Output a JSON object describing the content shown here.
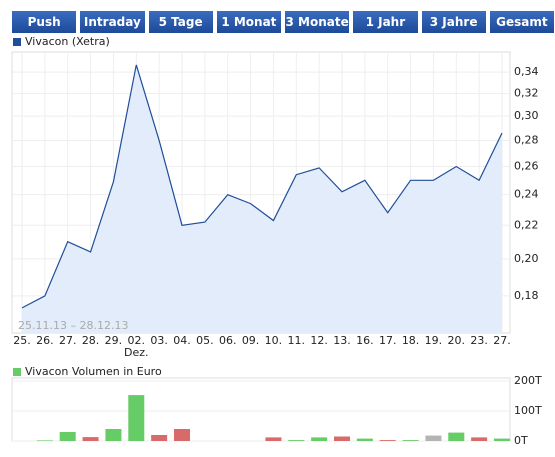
{
  "tabs": [
    "Push",
    "Intraday",
    "5 Tage",
    "1 Monat",
    "3 Monate",
    "1 Jahr",
    "3 Jahre",
    "Gesamt"
  ],
  "chart_data": [
    {
      "type": "area",
      "categories": [
        "25.",
        "26.",
        "27.",
        "28.",
        "29.",
        "02.",
        "03.",
        "04.",
        "05.",
        "06.",
        "09.",
        "10.",
        "11.",
        "12.",
        "13.",
        "16.",
        "17.",
        "18.",
        "19.",
        "20.",
        "23.",
        "27."
      ],
      "month_label": {
        "text": "Dez.",
        "at": "02."
      },
      "annotation": "25.11.13 – 28.12.13",
      "series": [
        {
          "name": "Vivacon (Xetra)",
          "color": "#1f4e9a",
          "fill": "#e3ecfa",
          "values": [
            0.174,
            0.18,
            0.21,
            0.204,
            0.249,
            0.347,
            0.28,
            0.22,
            0.222,
            0.24,
            0.234,
            0.223,
            0.254,
            0.259,
            0.242,
            0.25,
            0.228,
            0.25,
            0.25,
            0.26,
            0.25,
            0.286
          ]
        }
      ],
      "log_scale": true,
      "ylim": [
        0.162,
        0.36
      ],
      "yticks": [
        {
          "value": 0.18,
          "label": "0,18"
        },
        {
          "value": 0.2,
          "label": "0,20"
        },
        {
          "value": 0.22,
          "label": "0,22"
        },
        {
          "value": 0.24,
          "label": "0,24"
        },
        {
          "value": 0.26,
          "label": "0,26"
        },
        {
          "value": 0.28,
          "label": "0,28"
        },
        {
          "value": 0.3,
          "label": "0,30"
        },
        {
          "value": 0.32,
          "label": "0,32"
        },
        {
          "value": 0.34,
          "label": "0,34"
        }
      ],
      "grid": true
    },
    {
      "type": "bar",
      "series": [
        {
          "name": "Vivacon Volumen in Euro",
          "color": "#66cc66",
          "values": [
            0,
            2,
            30,
            13,
            40,
            153,
            20,
            40,
            0,
            0,
            0,
            12,
            3,
            12,
            15,
            8,
            3,
            3,
            18,
            28,
            12,
            8
          ],
          "colors": [
            "#66cc66",
            "#66cc66",
            "#66cc66",
            "#d96a6a",
            "#66cc66",
            "#66cc66",
            "#d96a6a",
            "#d96a6a",
            "#66cc66",
            "#66cc66",
            "#66cc66",
            "#d96a6a",
            "#66cc66",
            "#66cc66",
            "#d96a6a",
            "#66cc66",
            "#d96a6a",
            "#66cc66",
            "#b4b4b4",
            "#66cc66",
            "#d96a6a",
            "#66cc66"
          ]
        }
      ],
      "ylim": [
        0,
        200
      ],
      "yticks": [
        {
          "value": 0,
          "label": "0T"
        },
        {
          "value": 100,
          "label": "100T"
        },
        {
          "value": 200,
          "label": "200T"
        }
      ],
      "grid": true
    }
  ]
}
